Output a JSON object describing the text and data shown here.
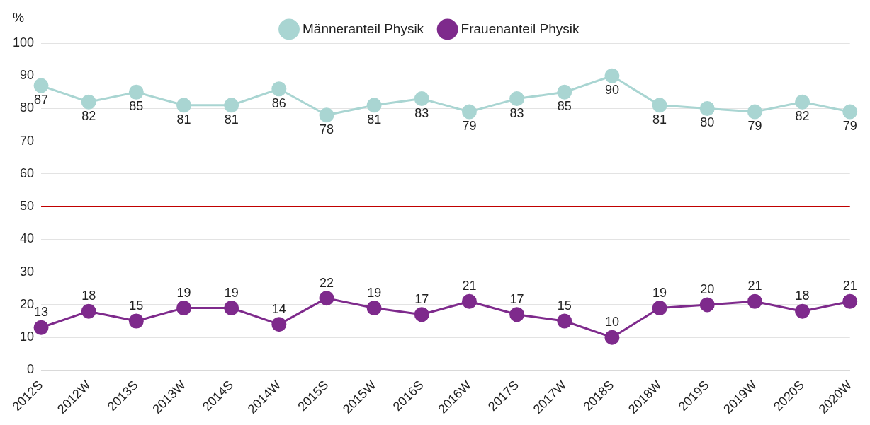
{
  "chart_data": {
    "type": "line",
    "ylabel": "%",
    "categories": [
      "2012S",
      "2012W",
      "2013S",
      "2013W",
      "2014S",
      "2014W",
      "2015S",
      "2015W",
      "2016S",
      "2016W",
      "2017S",
      "2017W",
      "2018S",
      "2018W",
      "2019S",
      "2019W",
      "2020S",
      "2020W"
    ],
    "series": [
      {
        "name": "Männeranteil Physik",
        "color": "#a9d5d2",
        "values": [
          87,
          82,
          85,
          81,
          81,
          86,
          78,
          81,
          83,
          79,
          83,
          85,
          90,
          81,
          80,
          79,
          82,
          79
        ]
      },
      {
        "name": "Frauenanteil Physik",
        "color": "#7e2a8c",
        "values": [
          13,
          18,
          15,
          19,
          19,
          14,
          22,
          19,
          17,
          21,
          17,
          15,
          10,
          19,
          20,
          21,
          18,
          21
        ]
      }
    ],
    "ylim": [
      0,
      100
    ],
    "yticks": [
      0,
      10,
      20,
      30,
      40,
      50,
      60,
      70,
      80,
      90,
      100
    ],
    "grid": "y",
    "legend": "top",
    "marker": "circle",
    "line_style": "solid",
    "data_labels": true,
    "ref_lines": [
      {
        "axis": "y",
        "value": 50,
        "color": "#c00000"
      }
    ]
  }
}
